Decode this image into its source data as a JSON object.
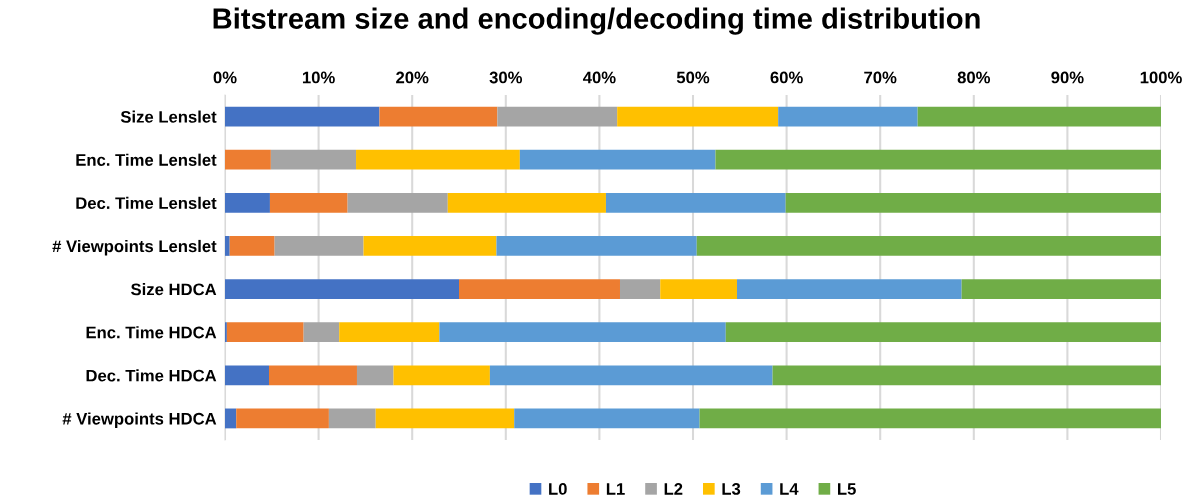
{
  "chart_data": {
    "type": "bar",
    "title": "Bitstream size and encoding/decoding time distribution",
    "orientation": "horizontal",
    "stacked": true,
    "categories": [
      "Size Lenslet",
      "Enc. Time Lenslet",
      "Dec. Time Lenslet",
      "# Viewpoints Lenslet",
      "Size HDCA",
      "Enc. Time HDCA",
      "Dec. Time HDCA",
      "# Viewpoints HDCA"
    ],
    "series": [
      {
        "name": "L0",
        "color": "#4472c4",
        "values": [
          16.5,
          0,
          4.8,
          0.5,
          25.0,
          0.2,
          4.7,
          1.2
        ]
      },
      {
        "name": "L1",
        "color": "#ed7d31",
        "values": [
          12.6,
          4.9,
          8.3,
          4.8,
          17.2,
          8.2,
          9.4,
          9.9
        ]
      },
      {
        "name": "L2",
        "color": "#a5a5a5",
        "values": [
          12.8,
          9.1,
          10.7,
          9.5,
          4.3,
          3.8,
          3.9,
          5.0
        ]
      },
      {
        "name": "L3",
        "color": "#ffc000",
        "values": [
          17.2,
          17.5,
          16.9,
          14.2,
          8.2,
          10.7,
          10.3,
          14.8
        ]
      },
      {
        "name": "L4",
        "color": "#5b9bd5",
        "values": [
          14.9,
          20.9,
          19.2,
          21.4,
          24.0,
          30.6,
          30.2,
          19.8
        ]
      },
      {
        "name": "L5",
        "color": "#70ad47",
        "values": [
          26.0,
          47.6,
          40.1,
          49.6,
          21.3,
          46.5,
          41.5,
          49.3
        ]
      }
    ],
    "xlim": [
      0,
      100
    ],
    "xticks": [
      {
        "value": 0,
        "label": "0%"
      },
      {
        "value": 10,
        "label": "10%"
      },
      {
        "value": 20,
        "label": "20%"
      },
      {
        "value": 30,
        "label": "30%"
      },
      {
        "value": 40,
        "label": "40%"
      },
      {
        "value": 50,
        "label": "50%"
      },
      {
        "value": 60,
        "label": "60%"
      },
      {
        "value": 70,
        "label": "70%"
      },
      {
        "value": 80,
        "label": "80%"
      },
      {
        "value": 90,
        "label": "90%"
      },
      {
        "value": 100,
        "label": "100%"
      }
    ],
    "grid": "x",
    "legend": "bottom"
  }
}
